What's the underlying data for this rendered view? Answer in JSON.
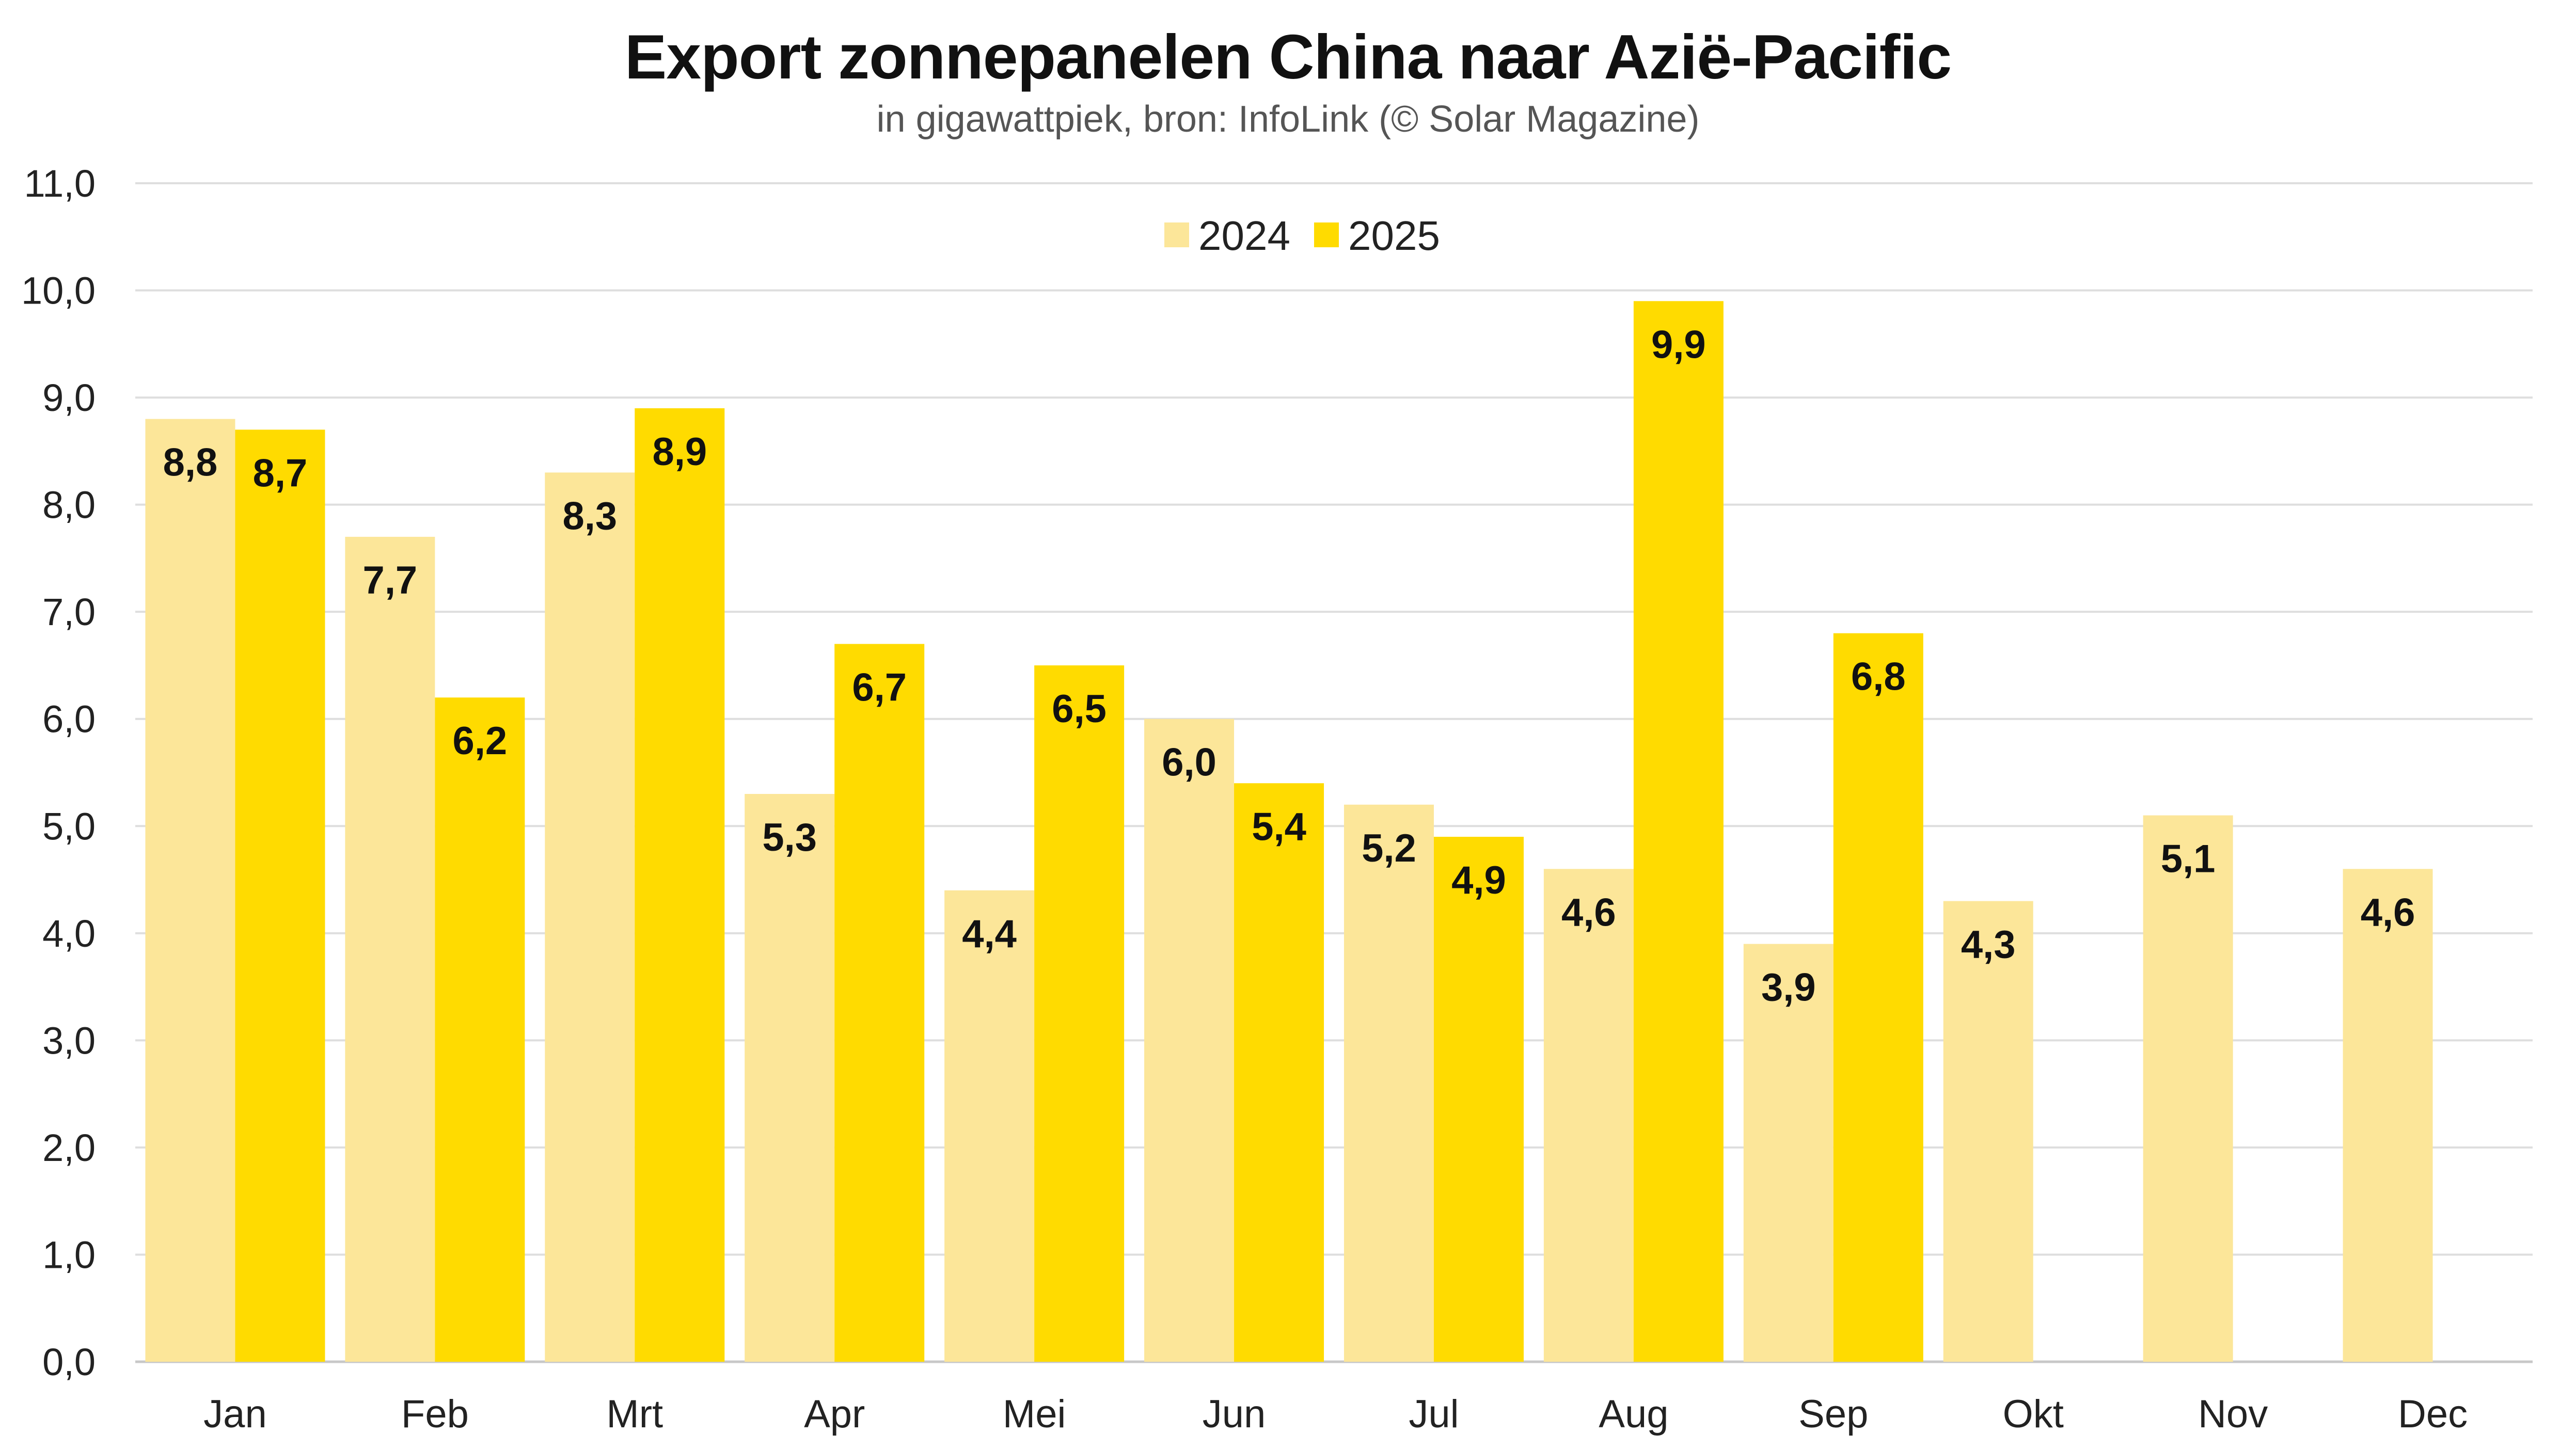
{
  "chart_data": {
    "type": "bar",
    "title": "Export zonnepanelen China naar Azië-Pacific",
    "subtitle": "in gigawattpiek, bron: InfoLink (© Solar Magazine)",
    "categories": [
      "Jan",
      "Feb",
      "Mrt",
      "Apr",
      "Mei",
      "Jun",
      "Jul",
      "Aug",
      "Sep",
      "Okt",
      "Nov",
      "Dec"
    ],
    "series": [
      {
        "name": "2024",
        "color": "#FCE699",
        "values": [
          8.8,
          7.7,
          8.3,
          5.3,
          4.4,
          6.0,
          5.2,
          4.6,
          3.9,
          4.3,
          5.1,
          4.6
        ],
        "labels": [
          "8,8",
          "7,7",
          "8,3",
          "5,3",
          "4,4",
          "6,0",
          "5,2",
          "4,6",
          "3,9",
          "4,3",
          "5,1",
          "4,6"
        ]
      },
      {
        "name": "2025",
        "color": "#FFDB00",
        "values": [
          8.7,
          6.2,
          8.9,
          6.7,
          6.5,
          5.4,
          4.9,
          9.9,
          6.8,
          null,
          null,
          null
        ],
        "labels": [
          "8,7",
          "6,2",
          "8,9",
          "6,7",
          "6,5",
          "5,4",
          "4,9",
          "9,9",
          "6,8",
          null,
          null,
          null
        ]
      }
    ],
    "ylim": [
      0,
      11
    ],
    "yticks": [
      0,
      1,
      2,
      3,
      4,
      5,
      6,
      7,
      8,
      9,
      10,
      11
    ],
    "ytick_labels": [
      "0,0",
      "1,0",
      "2,0",
      "3,0",
      "4,0",
      "5,0",
      "6,0",
      "7,0",
      "8,0",
      "9,0",
      "10,0",
      "11,0"
    ],
    "grid": true,
    "legend_position": "top-center"
  }
}
